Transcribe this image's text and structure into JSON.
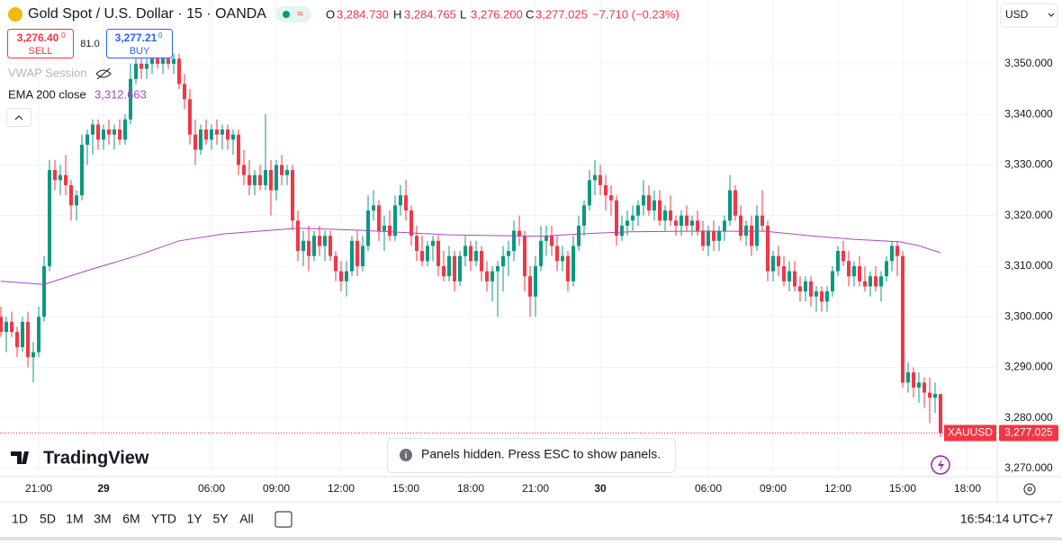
{
  "header": {
    "title": "Gold Spot / U.S. Dollar · 15 · OANDA",
    "o_label": "O",
    "o": "3,284.730",
    "h_label": "H",
    "h": "3,284.765",
    "l_label": "L",
    "l": "3,276.200",
    "c_label": "C",
    "c": "3,277.025",
    "change": "−7.710 (−0.23%)",
    "currency": "USD"
  },
  "trade": {
    "sell_price": "3,276.40",
    "sell_sup": "0",
    "sell": "SELL",
    "spread": "81.0",
    "buy_price": "3,277.21",
    "buy_sup": "0",
    "buy": "BUY"
  },
  "indicators": {
    "vwap": "VWAP Session",
    "ema_name": "EMA 200 close",
    "ema_value": "3,312.663"
  },
  "notice": "Panels hidden. Press ESC to show panels.",
  "brand": "TradingView",
  "toolbar": {
    "ranges": [
      "1D",
      "5D",
      "1M",
      "3M",
      "6M",
      "YTD",
      "1Y",
      "5Y",
      "All"
    ],
    "clock": "16:54:14 UTC+7"
  },
  "chart_data": {
    "type": "candlestick",
    "symbol": "XAUUSD",
    "last_price_label": "3,277.025",
    "up_color": "#089981",
    "down_color": "#f23645",
    "grid": true,
    "ylim": [
      3268.4,
      3362.6
    ],
    "yticks": [
      {
        "value": 3270,
        "label": "3,270.000"
      },
      {
        "value": 3280,
        "label": "3,280.000"
      },
      {
        "value": 3290,
        "label": "3,290.000"
      },
      {
        "value": 3300,
        "label": "3,300.000"
      },
      {
        "value": 3310,
        "label": "3,310.000"
      },
      {
        "value": 3320,
        "label": "3,320.000"
      },
      {
        "value": 3330,
        "label": "3,330.000"
      },
      {
        "value": 3340,
        "label": "3,340.000"
      },
      {
        "value": 3350,
        "label": "3,350.000"
      }
    ],
    "xlim": [
      -0.1667,
      184.5
    ],
    "xticks": [
      {
        "value": 7,
        "label": "21:00"
      },
      {
        "value": 19,
        "label": "29"
      },
      {
        "value": 39,
        "label": "06:00"
      },
      {
        "value": 51,
        "label": "09:00"
      },
      {
        "value": 63,
        "label": "12:00"
      },
      {
        "value": 75,
        "label": "15:00"
      },
      {
        "value": 87,
        "label": "18:00"
      },
      {
        "value": 99,
        "label": "21:00"
      },
      {
        "value": 111,
        "label": "30"
      },
      {
        "value": 131,
        "label": "06:00"
      },
      {
        "value": 143,
        "label": "09:00"
      },
      {
        "value": 155,
        "label": "12:00"
      },
      {
        "value": 167,
        "label": "15:00"
      },
      {
        "value": 179,
        "label": "18:00"
      }
    ],
    "candles": [
      [
        3300,
        3302,
        3296,
        3297
      ],
      [
        3297,
        3300,
        3293,
        3299
      ],
      [
        3299,
        3301,
        3296,
        3297
      ],
      [
        3297,
        3298,
        3292,
        3294
      ],
      [
        3294,
        3300,
        3293,
        3299
      ],
      [
        3299,
        3301,
        3290,
        3292
      ],
      [
        3292,
        3295,
        3287,
        3293
      ],
      [
        3293,
        3302,
        3292,
        3300
      ],
      [
        3300,
        3312,
        3299,
        3310
      ],
      [
        3310,
        3331,
        3309,
        3329
      ],
      [
        3329,
        3331,
        3325,
        3327
      ],
      [
        3327,
        3330,
        3324,
        3328
      ],
      [
        3328,
        3332,
        3324,
        3326
      ],
      [
        3326,
        3327,
        3319,
        3322
      ],
      [
        3322,
        3325,
        3319,
        3324
      ],
      [
        3324,
        3336,
        3323,
        3334
      ],
      [
        3334,
        3337,
        3330,
        3336
      ],
      [
        3336,
        3339,
        3332,
        3338
      ],
      [
        3338,
        3339,
        3333,
        3335
      ],
      [
        3335,
        3338,
        3333,
        3337
      ],
      [
        3337,
        3339,
        3334,
        3336
      ],
      [
        3336,
        3338,
        3333,
        3337
      ],
      [
        3337,
        3339,
        3334,
        3335
      ],
      [
        3335,
        3340,
        3334,
        3339
      ],
      [
        3339,
        3350,
        3338,
        3347
      ],
      [
        3347,
        3352,
        3346,
        3350
      ],
      [
        3350,
        3352,
        3347,
        3349
      ],
      [
        3349,
        3351,
        3347,
        3350
      ],
      [
        3350,
        3352,
        3348,
        3351
      ],
      [
        3351,
        3353,
        3349,
        3350
      ],
      [
        3350,
        3352,
        3348,
        3351
      ],
      [
        3351,
        3353,
        3349,
        3350
      ],
      [
        3350,
        3352,
        3348,
        3351
      ],
      [
        3351,
        3352,
        3345,
        3346
      ],
      [
        3346,
        3348,
        3341,
        3343
      ],
      [
        3343,
        3345,
        3334,
        3336
      ],
      [
        3336,
        3339,
        3330,
        3333
      ],
      [
        3333,
        3338,
        3332,
        3337
      ],
      [
        3337,
        3339,
        3334,
        3335
      ],
      [
        3335,
        3338,
        3333,
        3337
      ],
      [
        3337,
        3339,
        3334,
        3336
      ],
      [
        3336,
        3338,
        3333,
        3337
      ],
      [
        3337,
        3338,
        3333,
        3335
      ],
      [
        3335,
        3337,
        3332,
        3336
      ],
      [
        3336,
        3337,
        3328,
        3330
      ],
      [
        3330,
        3333,
        3326,
        3328
      ],
      [
        3328,
        3331,
        3324,
        3326
      ],
      [
        3326,
        3329,
        3324,
        3328
      ],
      [
        3328,
        3330,
        3325,
        3326
      ],
      [
        3326,
        3340,
        3325,
        3329
      ],
      [
        3329,
        3331,
        3320,
        3325
      ],
      [
        3325,
        3331,
        3323,
        3330
      ],
      [
        3330,
        3332,
        3326,
        3328
      ],
      [
        3328,
        3330,
        3326,
        3329
      ],
      [
        3329,
        3330,
        3317,
        3319
      ],
      [
        3319,
        3321,
        3311,
        3313
      ],
      [
        3313,
        3317,
        3310,
        3315
      ],
      [
        3315,
        3318,
        3309,
        3312
      ],
      [
        3312,
        3317,
        3311,
        3316
      ],
      [
        3316,
        3318,
        3312,
        3314
      ],
      [
        3314,
        3317,
        3311,
        3316
      ],
      [
        3316,
        3317,
        3311,
        3312
      ],
      [
        3312,
        3313,
        3307,
        3309
      ],
      [
        3309,
        3311,
        3305,
        3307
      ],
      [
        3307,
        3311,
        3304,
        3309
      ],
      [
        3309,
        3316,
        3308,
        3315
      ],
      [
        3315,
        3317,
        3308,
        3310
      ],
      [
        3310,
        3316,
        3309,
        3314
      ],
      [
        3314,
        3324,
        3313,
        3321
      ],
      [
        3321,
        3325,
        3319,
        3322
      ],
      [
        3322,
        3323,
        3315,
        3317
      ],
      [
        3317,
        3320,
        3313,
        3318
      ],
      [
        3318,
        3321,
        3315,
        3316
      ],
      [
        3316,
        3324,
        3315,
        3322
      ],
      [
        3322,
        3326,
        3320,
        3324
      ],
      [
        3324,
        3327,
        3319,
        3321
      ],
      [
        3321,
        3322,
        3314,
        3316
      ],
      [
        3316,
        3318,
        3311,
        3313
      ],
      [
        3313,
        3316,
        3310,
        3311
      ],
      [
        3311,
        3315,
        3310,
        3314
      ],
      [
        3314,
        3316,
        3311,
        3315
      ],
      [
        3315,
        3316,
        3308,
        3310
      ],
      [
        3310,
        3313,
        3307,
        3308
      ],
      [
        3308,
        3314,
        3307,
        3312
      ],
      [
        3312,
        3313,
        3305,
        3307
      ],
      [
        3307,
        3313,
        3306,
        3312
      ],
      [
        3312,
        3316,
        3310,
        3314
      ],
      [
        3314,
        3315,
        3309,
        3311
      ],
      [
        3311,
        3315,
        3310,
        3313
      ],
      [
        3313,
        3314,
        3307,
        3309
      ],
      [
        3309,
        3311,
        3305,
        3307
      ],
      [
        3307,
        3310,
        3303,
        3309
      ],
      [
        3309,
        3311,
        3300,
        3310
      ],
      [
        3310,
        3314,
        3305,
        3312
      ],
      [
        3312,
        3315,
        3308,
        3313
      ],
      [
        3313,
        3319,
        3311,
        3317
      ],
      [
        3317,
        3320,
        3314,
        3316
      ],
      [
        3316,
        3317,
        3305,
        3308
      ],
      [
        3308,
        3310,
        3300,
        3304
      ],
      [
        3304,
        3312,
        3300,
        3310
      ],
      [
        3310,
        3318,
        3309,
        3315
      ],
      [
        3315,
        3318,
        3312,
        3316
      ],
      [
        3316,
        3318,
        3312,
        3314
      ],
      [
        3314,
        3316,
        3309,
        3311
      ],
      [
        3311,
        3314,
        3309,
        3312
      ],
      [
        3312,
        3313,
        3305,
        3307
      ],
      [
        3307,
        3316,
        3306,
        3314
      ],
      [
        3314,
        3320,
        3313,
        3318
      ],
      [
        3318,
        3323,
        3316,
        3322
      ],
      [
        3322,
        3329,
        3321,
        3327
      ],
      [
        3327,
        3331,
        3324,
        3328
      ],
      [
        3328,
        3330,
        3324,
        3326
      ],
      [
        3326,
        3328,
        3321,
        3324
      ],
      [
        3324,
        3326,
        3320,
        3323
      ],
      [
        3323,
        3324,
        3314,
        3316
      ],
      [
        3316,
        3320,
        3315,
        3318
      ],
      [
        3318,
        3321,
        3316,
        3319
      ],
      [
        3319,
        3322,
        3317,
        3320
      ],
      [
        3320,
        3323,
        3318,
        3322
      ],
      [
        3322,
        3327,
        3320,
        3324
      ],
      [
        3324,
        3326,
        3320,
        3321
      ],
      [
        3321,
        3325,
        3319,
        3323
      ],
      [
        3323,
        3325,
        3318,
        3319
      ],
      [
        3319,
        3322,
        3317,
        3321
      ],
      [
        3321,
        3324,
        3318,
        3319
      ],
      [
        3319,
        3320,
        3316,
        3318
      ],
      [
        3318,
        3321,
        3316,
        3320
      ],
      [
        3320,
        3322,
        3317,
        3318
      ],
      [
        3318,
        3320,
        3316,
        3319
      ],
      [
        3319,
        3321,
        3316,
        3317
      ],
      [
        3317,
        3319,
        3313,
        3314
      ],
      [
        3314,
        3318,
        3312,
        3317
      ],
      [
        3317,
        3319,
        3313,
        3315
      ],
      [
        3315,
        3318,
        3313,
        3317
      ],
      [
        3317,
        3320,
        3315,
        3319
      ],
      [
        3319,
        3328,
        3318,
        3325
      ],
      [
        3325,
        3326,
        3319,
        3320
      ],
      [
        3320,
        3322,
        3315,
        3316
      ],
      [
        3316,
        3319,
        3314,
        3318
      ],
      [
        3318,
        3320,
        3312,
        3314
      ],
      [
        3314,
        3322,
        3313,
        3320
      ],
      [
        3320,
        3325,
        3317,
        3318
      ],
      [
        3318,
        3319,
        3307,
        3309
      ],
      [
        3309,
        3313,
        3307,
        3312
      ],
      [
        3312,
        3314,
        3308,
        3310
      ],
      [
        3310,
        3312,
        3306,
        3307
      ],
      [
        3307,
        3311,
        3305,
        3309
      ],
      [
        3309,
        3311,
        3305,
        3306
      ],
      [
        3306,
        3308,
        3303,
        3305
      ],
      [
        3305,
        3308,
        3303,
        3307
      ],
      [
        3307,
        3308,
        3302,
        3304
      ],
      [
        3304,
        3306,
        3301,
        3305
      ],
      [
        3305,
        3306,
        3301,
        3303
      ],
      [
        3303,
        3306,
        3301,
        3305
      ],
      [
        3305,
        3310,
        3304,
        3309
      ],
      [
        3309,
        3314,
        3308,
        3313
      ],
      [
        3313,
        3315,
        3310,
        3311
      ],
      [
        3311,
        3313,
        3306,
        3308
      ],
      [
        3308,
        3311,
        3306,
        3310
      ],
      [
        3310,
        3312,
        3306,
        3307
      ],
      [
        3307,
        3310,
        3305,
        3306
      ],
      [
        3306,
        3309,
        3304,
        3308
      ],
      [
        3308,
        3310,
        3305,
        3306
      ],
      [
        3306,
        3309,
        3303,
        3308
      ],
      [
        3308,
        3312,
        3307,
        3311
      ],
      [
        3311,
        3315,
        3309,
        3314
      ],
      [
        3314,
        3315,
        3308,
        3312
      ],
      [
        3312,
        3313,
        3286,
        3287
      ],
      [
        3287,
        3291,
        3285,
        3289
      ],
      [
        3289,
        3290,
        3284,
        3286
      ],
      [
        3286,
        3289,
        3283,
        3287
      ],
      [
        3287,
        3288,
        3282,
        3285
      ],
      [
        3285,
        3288,
        3279,
        3284
      ],
      [
        3284,
        3287,
        3281,
        3284.73
      ],
      [
        3284.73,
        3284.765,
        3276.2,
        3277.025
      ]
    ],
    "ema": {
      "name": "EMA 200 close",
      "color": "#ab47bc",
      "x": [
        0,
        8,
        16.5,
        25,
        33,
        41.5,
        55,
        66.5,
        83,
        100,
        108,
        116.5,
        126.5,
        133,
        141.5,
        150,
        158,
        166.5,
        169.8,
        174
      ],
      "values": [
        3307,
        3306.4,
        3309.3,
        3312,
        3315,
        3316.4,
        3317.5,
        3317.1,
        3316.2,
        3315.9,
        3316.4,
        3316.8,
        3316.9,
        3316.9,
        3316.9,
        3316,
        3315.3,
        3314.8,
        3314.1,
        3312.663
      ]
    }
  }
}
